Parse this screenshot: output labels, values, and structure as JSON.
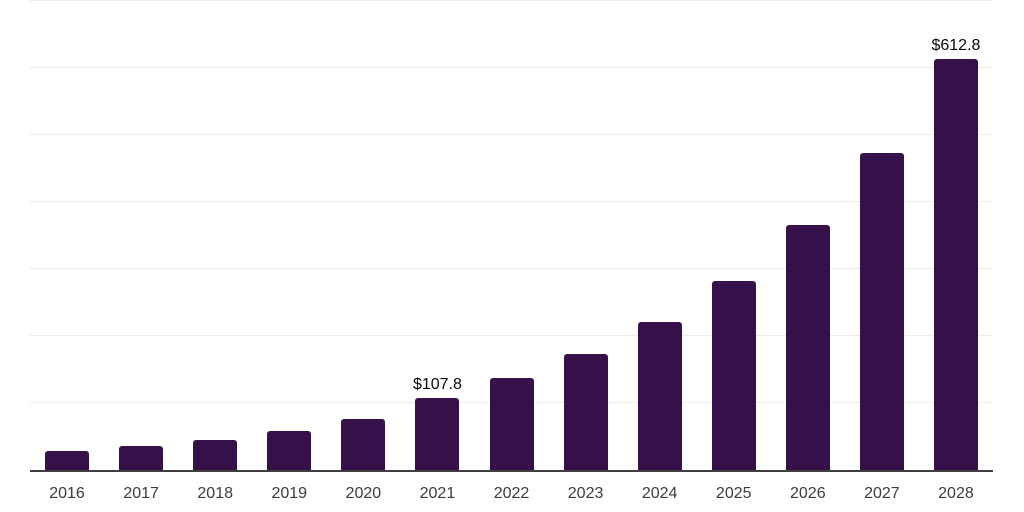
{
  "chart_data": {
    "type": "bar",
    "title": "",
    "xlabel": "",
    "ylabel": "",
    "categories": [
      "2016",
      "2017",
      "2018",
      "2019",
      "2020",
      "2021",
      "2022",
      "2023",
      "2024",
      "2025",
      "2026",
      "2027",
      "2028"
    ],
    "values": [
      28.4,
      35.8,
      44.8,
      58.2,
      76.1,
      107.8,
      136.6,
      173.1,
      220.9,
      282.5,
      365.2,
      473.6,
      612.8
    ],
    "value_labels": {
      "2021": "$107.8",
      "2028": "$612.8"
    },
    "ylim": [
      0,
      700
    ],
    "grid_step": 100,
    "grid": true,
    "legend": false,
    "y_axis_tick_labels_shown": false,
    "colors": {
      "bar": "#361149",
      "gridline": "#ececec",
      "axis_line": "#3f3f3f",
      "value_label_text": "#0a0a0a",
      "tick_label_text": "#3c3c3c",
      "background": "#ffffff"
    }
  }
}
